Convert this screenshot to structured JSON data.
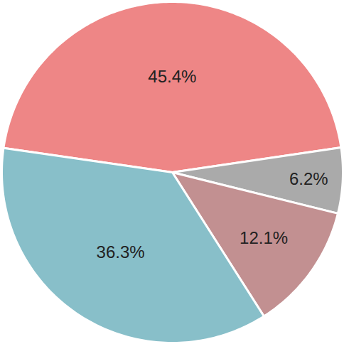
{
  "chart_data": {
    "type": "pie",
    "values": [
      45.4,
      6.2,
      12.1,
      36.3
    ],
    "value_labels": [
      "45.4%",
      "6.2%",
      "12.1%",
      "36.3%"
    ],
    "colors": [
      "#ee8686",
      "#aaaaaa",
      "#c29091",
      "#88bfc9"
    ],
    "data_labels": true,
    "tick_labels": false
  }
}
